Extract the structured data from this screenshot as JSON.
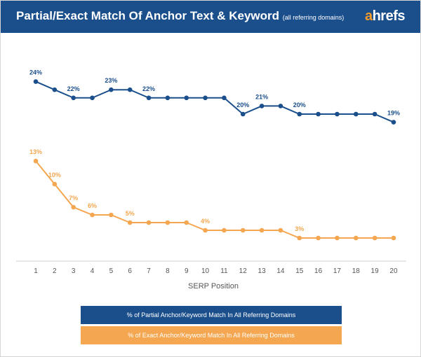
{
  "header": {
    "title": "Partial/Exact Match Of Anchor Text & Keyword",
    "subtitle": "(all referring domains)",
    "logo_first": "a",
    "logo_rest": "hrefs"
  },
  "colors": {
    "blue": "#1b4f8c",
    "orange": "#f4a750"
  },
  "chart_data": {
    "type": "line",
    "xlabel": "SERP Position",
    "x": [
      1,
      2,
      3,
      4,
      5,
      6,
      7,
      8,
      9,
      10,
      11,
      12,
      13,
      14,
      15,
      16,
      17,
      18,
      19,
      20
    ],
    "series": [
      {
        "name": "% of Partial Anchor/Keyword Match In All Referring Domains",
        "color": "#1b4f8c",
        "values": [
          24,
          23,
          22,
          22,
          23,
          23,
          22,
          22,
          22,
          22,
          22,
          20,
          21,
          21,
          20,
          20,
          20,
          20,
          20,
          19
        ],
        "labels": [
          {
            "x": 1,
            "text": "24%"
          },
          {
            "x": 3,
            "text": "22%"
          },
          {
            "x": 5,
            "text": "23%"
          },
          {
            "x": 7,
            "text": "22%"
          },
          {
            "x": 12,
            "text": "20%"
          },
          {
            "x": 13,
            "text": "21%"
          },
          {
            "x": 15,
            "text": "20%"
          },
          {
            "x": 20,
            "text": "19%"
          }
        ]
      },
      {
        "name": "% of Exact Anchor/Keyword Match In All Referring Domains",
        "color": "#f4a750",
        "values": [
          13,
          10,
          7,
          6,
          6,
          5,
          5,
          5,
          5,
          4,
          4,
          4,
          4,
          4,
          3,
          3,
          3,
          3,
          3,
          3
        ],
        "labels": [
          {
            "x": 1,
            "text": "13%"
          },
          {
            "x": 2,
            "text": "10%"
          },
          {
            "x": 3,
            "text": "7%"
          },
          {
            "x": 4,
            "text": "6%"
          },
          {
            "x": 6,
            "text": "5%"
          },
          {
            "x": 10,
            "text": "4%"
          },
          {
            "x": 15,
            "text": "3%"
          }
        ]
      }
    ],
    "grid": false,
    "legend_position": "bottom"
  }
}
